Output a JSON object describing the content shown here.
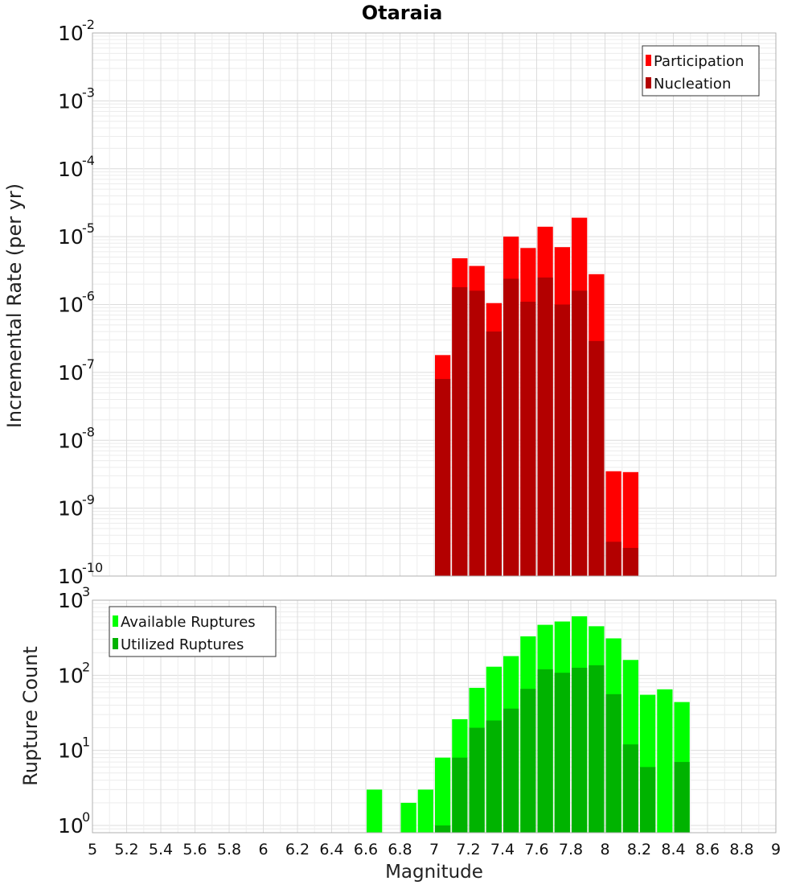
{
  "chart_data": {
    "type": "bar",
    "title": "Otaraia",
    "xlabel": "Magnitude",
    "x_ticks": [
      "5",
      "5.2",
      "5.4",
      "5.6",
      "5.8",
      "6",
      "6.2",
      "6.4",
      "6.6",
      "6.8",
      "7",
      "7.2",
      "7.4",
      "7.6",
      "7.8",
      "8",
      "8.2",
      "8.4",
      "8.6",
      "8.8",
      "9"
    ],
    "xlim": [
      5,
      9
    ],
    "grid": true,
    "panels": [
      {
        "ylabel": "Incremental Rate (per yr)",
        "yscale": "log",
        "ylim": [
          1e-10,
          0.01
        ],
        "y_ticks": [
          {
            "base": "10",
            "exp": "-10"
          },
          {
            "base": "10",
            "exp": "-9"
          },
          {
            "base": "10",
            "exp": "-8"
          },
          {
            "base": "10",
            "exp": "-7"
          },
          {
            "base": "10",
            "exp": "-6"
          },
          {
            "base": "10",
            "exp": "-5"
          },
          {
            "base": "10",
            "exp": "-4"
          },
          {
            "base": "10",
            "exp": "-3"
          },
          {
            "base": "10",
            "exp": "-2"
          }
        ],
        "legend_position": "top-right",
        "x": [
          7.05,
          7.15,
          7.25,
          7.35,
          7.45,
          7.55,
          7.65,
          7.75,
          7.85,
          7.95,
          8.05,
          8.15
        ],
        "series": [
          {
            "name": "Participation",
            "color": "#ff0000",
            "values": [
              1.8e-07,
              4.8e-06,
              3.7e-06,
              1.05e-06,
              1e-05,
              6.8e-06,
              1.4e-05,
              7e-06,
              1.9e-05,
              2.8e-06,
              3.5e-09,
              3.4e-09
            ]
          },
          {
            "name": "Nucleation",
            "color": "#b30000",
            "values": [
              8e-08,
              1.8e-06,
              1.6e-06,
              4e-07,
              2.4e-06,
              1.1e-06,
              2.5e-06,
              1e-06,
              1.6e-06,
              2.9e-07,
              3.2e-10,
              2.6e-10
            ]
          }
        ]
      },
      {
        "ylabel": "Rupture Count",
        "yscale": "log",
        "ylim": [
          0.8,
          1000
        ],
        "y_ticks": [
          {
            "base": "10",
            "exp": "0"
          },
          {
            "base": "10",
            "exp": "1"
          },
          {
            "base": "10",
            "exp": "2"
          },
          {
            "base": "10",
            "exp": "3"
          }
        ],
        "legend_position": "top-left",
        "x": [
          6.65,
          6.85,
          6.95,
          7.05,
          7.15,
          7.25,
          7.35,
          7.45,
          7.55,
          7.65,
          7.75,
          7.85,
          7.95,
          8.05,
          8.15,
          8.25,
          8.35,
          8.45
        ],
        "series": [
          {
            "name": "Available Ruptures",
            "color": "#00ff00",
            "values": [
              3,
              2,
              3,
              8,
              26,
              68,
              130,
              180,
              330,
              470,
              520,
              610,
              450,
              310,
              160,
              55,
              65,
              44
            ]
          },
          {
            "name": "Utilized Ruptures",
            "color": "#00b300",
            "values": [
              0,
              0,
              0,
              1,
              8,
              20,
              25,
              36,
              66,
              120,
              108,
              126,
              136,
              56,
              12,
              6,
              0,
              7
            ]
          }
        ]
      }
    ]
  }
}
